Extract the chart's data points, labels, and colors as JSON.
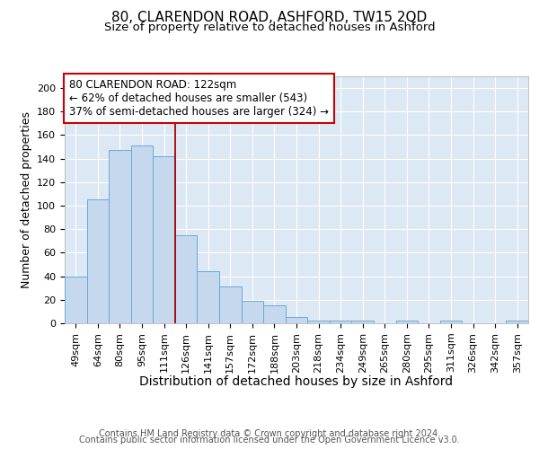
{
  "title1": "80, CLARENDON ROAD, ASHFORD, TW15 2QD",
  "title2": "Size of property relative to detached houses in Ashford",
  "xlabel": "Distribution of detached houses by size in Ashford",
  "ylabel": "Number of detached properties",
  "categories": [
    "49sqm",
    "64sqm",
    "80sqm",
    "95sqm",
    "111sqm",
    "126sqm",
    "141sqm",
    "157sqm",
    "172sqm",
    "188sqm",
    "203sqm",
    "218sqm",
    "234sqm",
    "249sqm",
    "265sqm",
    "280sqm",
    "295sqm",
    "311sqm",
    "326sqm",
    "342sqm",
    "357sqm"
  ],
  "values": [
    40,
    105,
    147,
    151,
    142,
    75,
    44,
    31,
    19,
    15,
    5,
    2,
    2,
    2,
    0,
    2,
    0,
    2,
    0,
    0,
    2
  ],
  "bar_color": "#c5d8ee",
  "bar_edge_color": "#6aaad4",
  "vline_index": 5,
  "vline_color": "#aa0000",
  "annotation_text": "80 CLARENDON ROAD: 122sqm\n← 62% of detached houses are smaller (543)\n37% of semi-detached houses are larger (324) →",
  "annotation_box_color": "#ffffff",
  "annotation_box_edge_color": "#cc0000",
  "ylim": [
    0,
    210
  ],
  "yticks": [
    0,
    20,
    40,
    60,
    80,
    100,
    120,
    140,
    160,
    180,
    200
  ],
  "background_color": "#dde8f5",
  "footer1": "Contains HM Land Registry data © Crown copyright and database right 2024.",
  "footer2": "Contains public sector information licensed under the Open Government Licence v3.0.",
  "title1_fontsize": 11,
  "title2_fontsize": 9.5,
  "xlabel_fontsize": 10,
  "ylabel_fontsize": 9,
  "tick_fontsize": 8,
  "annotation_fontsize": 8.5,
  "footer_fontsize": 7
}
